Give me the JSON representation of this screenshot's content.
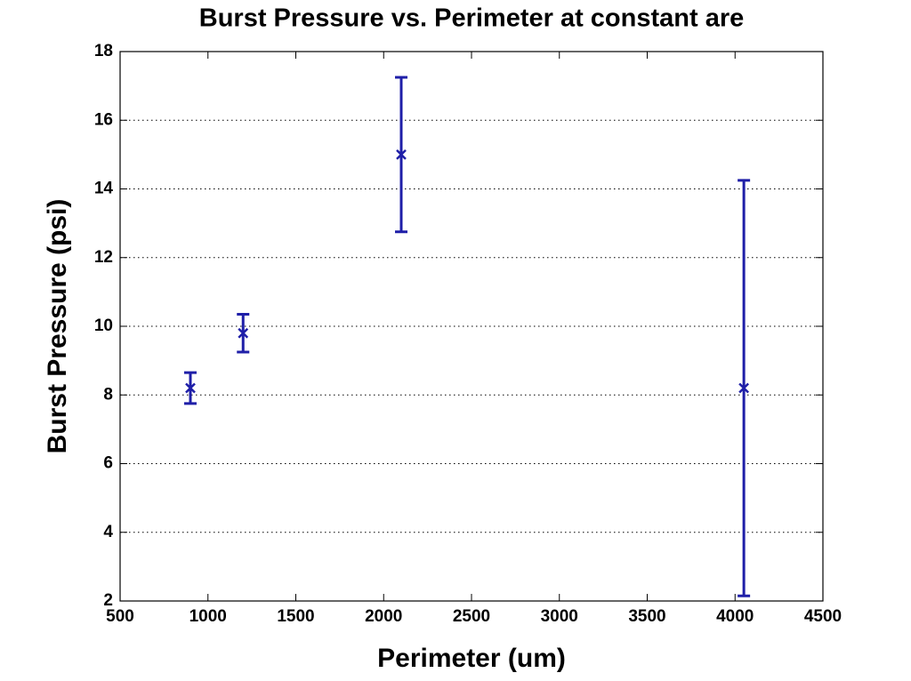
{
  "chart_data": {
    "type": "errorbar",
    "title": "Burst Pressure vs. Perimeter at constant are",
    "x_label": "Perimeter (um)",
    "y_label": "Burst Pressure (psi)",
    "x": [
      900,
      1200,
      2100,
      4050
    ],
    "values": [
      8.2,
      9.8,
      15,
      8.2
    ],
    "errors": [
      0.45,
      0.55,
      2.25,
      6.05
    ],
    "color": "#1f1fa8",
    "marker": "x",
    "xlim": [
      500,
      4500
    ],
    "xticks": [
      500,
      1000,
      1500,
      2000,
      2500,
      3000,
      3500,
      4000,
      4500
    ],
    "ylim": [
      2,
      18
    ],
    "yticks": [
      2,
      4,
      6,
      8,
      10,
      12,
      14,
      16,
      18
    ],
    "grid": "y"
  }
}
